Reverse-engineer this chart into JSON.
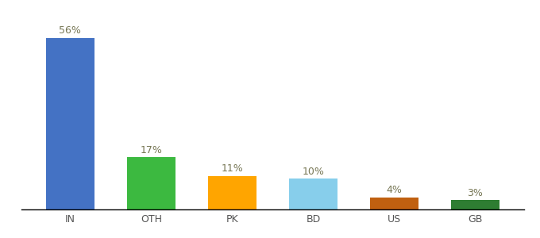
{
  "categories": [
    "IN",
    "OTH",
    "PK",
    "BD",
    "US",
    "GB"
  ],
  "values": [
    56,
    17,
    11,
    10,
    4,
    3
  ],
  "labels": [
    "56%",
    "17%",
    "11%",
    "10%",
    "4%",
    "3%"
  ],
  "bar_colors": [
    "#4472C4",
    "#3CB940",
    "#FFA500",
    "#87CEEB",
    "#C06010",
    "#2E7D32"
  ],
  "background_color": "#ffffff",
  "ylim": [
    0,
    63
  ],
  "label_fontsize": 9,
  "tick_fontsize": 9,
  "figsize": [
    6.8,
    3.0
  ],
  "dpi": 100
}
